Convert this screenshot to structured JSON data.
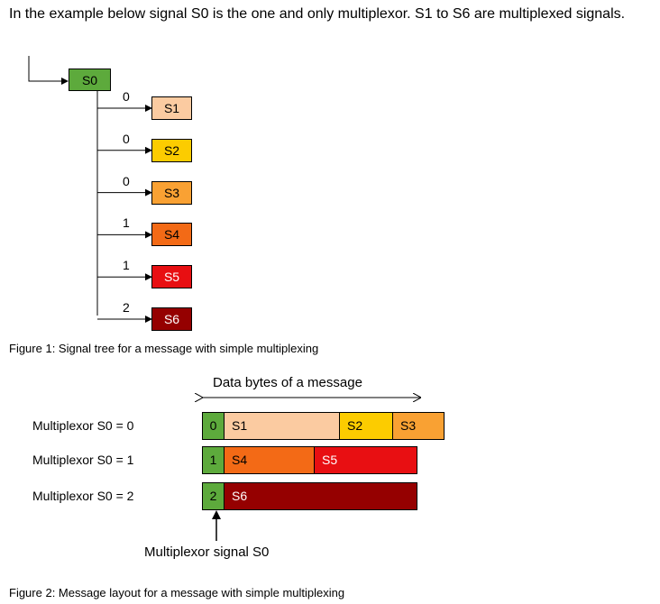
{
  "intro_text": "In the example below signal S0 is the one and only multiplexor. S1 to S6 are multiplexed signals.",
  "figure1": {
    "caption": "Figure 1: Signal tree for a message with simple multiplexing",
    "root": {
      "label": "S0",
      "color": "#5daa3c"
    },
    "branches": [
      {
        "value": "0",
        "signal": "S1",
        "color": "#fbcba1",
        "text_color": "#000000"
      },
      {
        "value": "0",
        "signal": "S2",
        "color": "#fccc00",
        "text_color": "#000000"
      },
      {
        "value": "0",
        "signal": "S3",
        "color": "#f9a133",
        "text_color": "#000000"
      },
      {
        "value": "1",
        "signal": "S4",
        "color": "#f36a16",
        "text_color": "#000000"
      },
      {
        "value": "1",
        "signal": "S5",
        "color": "#e80f12",
        "text_color": "#ffffff"
      },
      {
        "value": "2",
        "signal": "S6",
        "color": "#950000",
        "text_color": "#ffffff"
      }
    ]
  },
  "figure2": {
    "header": "Data bytes of a message",
    "rows": [
      {
        "condition": "Multiplexor S0 = 0",
        "mux_value": "0",
        "segments": [
          {
            "signal": "S1",
            "color": "#fbcba1",
            "text_color": "#000000"
          },
          {
            "signal": "S2",
            "color": "#fccc00",
            "text_color": "#000000"
          },
          {
            "signal": "S3",
            "color": "#f9a133",
            "text_color": "#000000"
          }
        ]
      },
      {
        "condition": "Multiplexor S0 = 1",
        "mux_value": "1",
        "segments": [
          {
            "signal": "S4",
            "color": "#f36a16",
            "text_color": "#000000"
          },
          {
            "signal": "S5",
            "color": "#e80f12",
            "text_color": "#ffffff"
          }
        ]
      },
      {
        "condition": "Multiplexor S0 = 2",
        "mux_value": "2",
        "segments": [
          {
            "signal": "S6",
            "color": "#950000",
            "text_color": "#ffffff"
          }
        ]
      }
    ],
    "mux_label": "Multiplexor signal S0",
    "mux_color": "#5daa3c",
    "caption": "Figure 2: Message layout for a message with simple multiplexing"
  }
}
